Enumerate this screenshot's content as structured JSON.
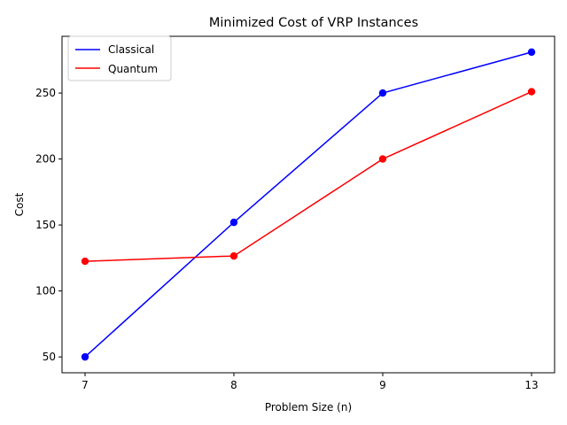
{
  "chart_data": {
    "type": "line",
    "title": "Minimized Cost of VRP Instances",
    "xlabel": "Problem Size (n)",
    "ylabel": "Cost",
    "categories": [
      "7",
      "8",
      "9",
      "13"
    ],
    "ylim": [
      38,
      293
    ],
    "yticks": [
      50,
      100,
      150,
      200,
      250
    ],
    "series": [
      {
        "name": "Classical",
        "color": "#0000ff",
        "values": [
          50,
          152,
          250,
          281
        ]
      },
      {
        "name": "Quantum",
        "color": "#ff0000",
        "values": [
          122.5,
          126.5,
          200,
          251
        ]
      }
    ],
    "legend_position": "top-left",
    "grid": false
  }
}
